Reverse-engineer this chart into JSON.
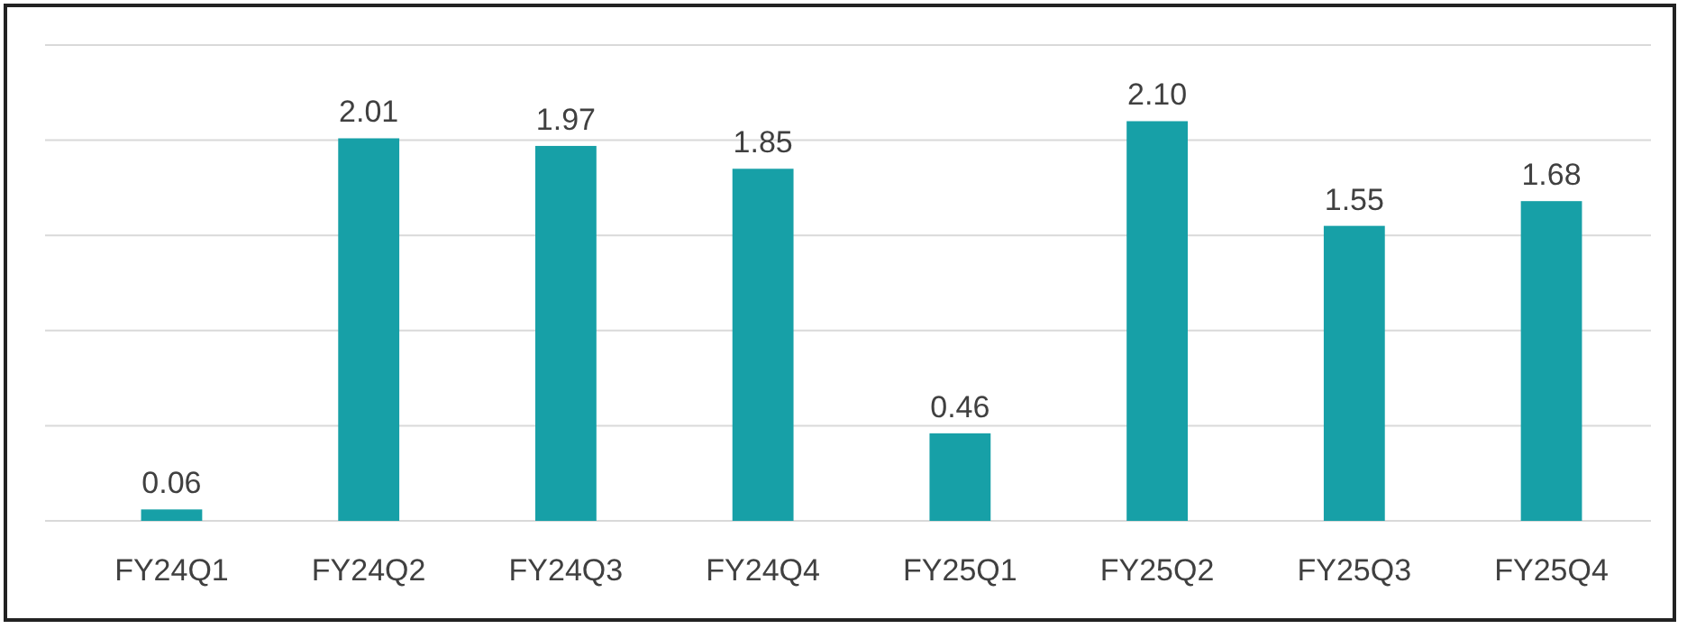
{
  "chart_data": {
    "type": "bar",
    "categories": [
      "FY24Q1",
      "FY24Q2",
      "FY24Q3",
      "FY24Q4",
      "FY25Q1",
      "FY25Q2",
      "FY25Q3",
      "FY25Q4"
    ],
    "values": [
      0.06,
      2.01,
      1.97,
      1.85,
      0.46,
      2.1,
      1.55,
      1.68
    ],
    "color": "#17a0a7",
    "value_labels": [
      "0.06",
      "2.01",
      "1.97",
      "1.85",
      "0.46",
      "2.10",
      "1.55",
      "1.68"
    ],
    "grid": "y",
    "tick_labels": "x",
    "ylim": [
      0,
      2.5
    ],
    "yticks": [
      {
        "value": 0,
        "label": null
      },
      {
        "value": 0.5,
        "label": null
      },
      {
        "value": 1,
        "label": null
      },
      {
        "value": 1.5,
        "label": null
      },
      {
        "value": 2,
        "label": null
      },
      {
        "value": 2.5,
        "label": null
      }
    ]
  }
}
